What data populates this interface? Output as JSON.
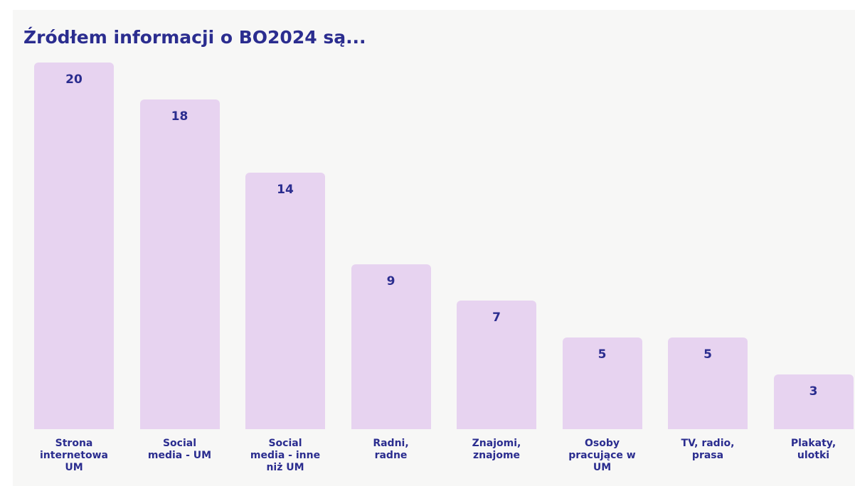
{
  "chart_data": {
    "type": "bar",
    "title": "Źródłem informacji o BO2024 są...",
    "categories": [
      "Strona internetowa UM",
      "Social media - UM",
      "Social media - inne niż UM",
      "Radni, radne",
      "Znajomi, znajome",
      "Osoby pracujące w UM",
      "TV, radio, prasa",
      "Plakaty, ulotki"
    ],
    "values": [
      20,
      18,
      14,
      9,
      7,
      5,
      5,
      3
    ],
    "color": "#e7d3f0"
  }
}
